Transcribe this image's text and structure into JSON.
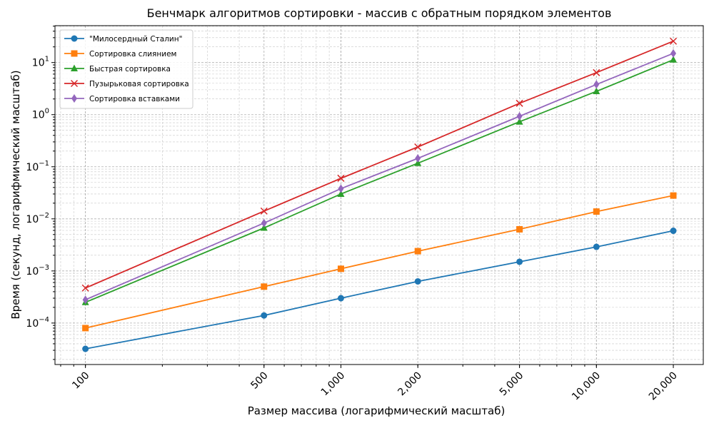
{
  "chart_data": {
    "type": "line",
    "title": "Бенчмарк алгоритмов сортировки - массив с обратным порядком элементов",
    "xlabel": "Размер массива (логарифмический масштаб)",
    "ylabel": "Время (секунд, логарифмический масштаб)",
    "xscale": "log",
    "yscale": "log",
    "x": [
      100,
      500,
      1000,
      2000,
      5000,
      10000,
      20000
    ],
    "x_tick_labels": [
      "100",
      "500",
      "1,000",
      "2,000",
      "5,000",
      "10,000",
      "20,000"
    ],
    "y_tick_labels": [
      "10^-4",
      "10^-3",
      "10^-2",
      "10^-1",
      "10^0",
      "10^1"
    ],
    "y_tick_values": [
      0.0001,
      0.001,
      0.01,
      0.1,
      1,
      10
    ],
    "xlim": [
      76,
      26200
    ],
    "ylim": [
      1.6e-05,
      51
    ],
    "grid": true,
    "grid_minor": true,
    "legend_position": "upper left",
    "series": [
      {
        "name": "\"Милосердный Сталин\"",
        "color": "#1f77b4",
        "marker": "circle",
        "values": [
          3.2e-05,
          0.00014,
          0.0003,
          0.00063,
          0.0015,
          0.0029,
          0.0059
        ]
      },
      {
        "name": "Сортировка слиянием",
        "color": "#ff7f0e",
        "marker": "square",
        "values": [
          8e-05,
          0.0005,
          0.0011,
          0.0024,
          0.0063,
          0.0138,
          0.028
        ]
      },
      {
        "name": "Быстрая сортировка",
        "color": "#2ca02c",
        "marker": "triangle",
        "values": [
          0.00025,
          0.0067,
          0.03,
          0.117,
          0.73,
          2.8,
          11.3
        ]
      },
      {
        "name": "Пузырьковая сортировка",
        "color": "#d62728",
        "marker": "x",
        "values": [
          0.00047,
          0.0141,
          0.06,
          0.24,
          1.65,
          6.4,
          25.7
        ]
      },
      {
        "name": "Сортировка вставками",
        "color": "#9467bd",
        "marker": "diamond",
        "values": [
          0.00028,
          0.0083,
          0.038,
          0.145,
          0.93,
          3.8,
          15.0
        ]
      }
    ]
  }
}
